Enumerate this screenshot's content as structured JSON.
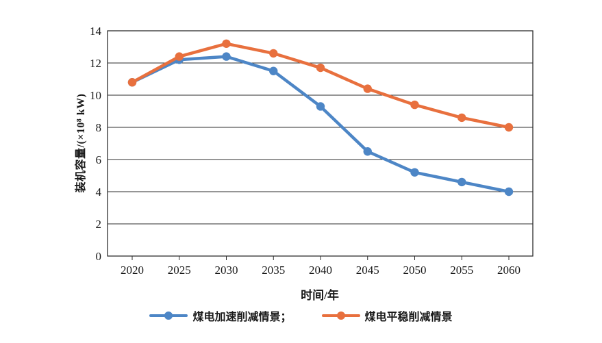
{
  "chart_data": {
    "type": "line",
    "title": "",
    "xlabel": "时间/年",
    "ylabel": "装机容量/(×10⁸ kW)",
    "categories": [
      "2020",
      "2025",
      "2030",
      "2035",
      "2040",
      "2045",
      "2050",
      "2055",
      "2060"
    ],
    "ylim": [
      0,
      14
    ],
    "yticks": [
      0,
      2,
      4,
      6,
      8,
      10,
      12,
      14
    ],
    "grid": "horizontal",
    "legend_position": "bottom",
    "series": [
      {
        "name": "煤电加速削减情景",
        "legend_label": "煤电加速削减情景；",
        "color": "#4D86C6",
        "values": [
          10.8,
          12.2,
          12.4,
          11.5,
          9.3,
          6.5,
          5.2,
          4.6,
          4.0
        ]
      },
      {
        "name": "煤电平稳削减情景",
        "legend_label": "煤电平稳削减情景",
        "color": "#E8703E",
        "values": [
          10.8,
          12.4,
          13.2,
          12.6,
          11.7,
          10.4,
          9.4,
          8.6,
          8.0
        ]
      }
    ],
    "axis_color": "#2e2e2e",
    "tick_label_color": "#1a1a1a"
  }
}
